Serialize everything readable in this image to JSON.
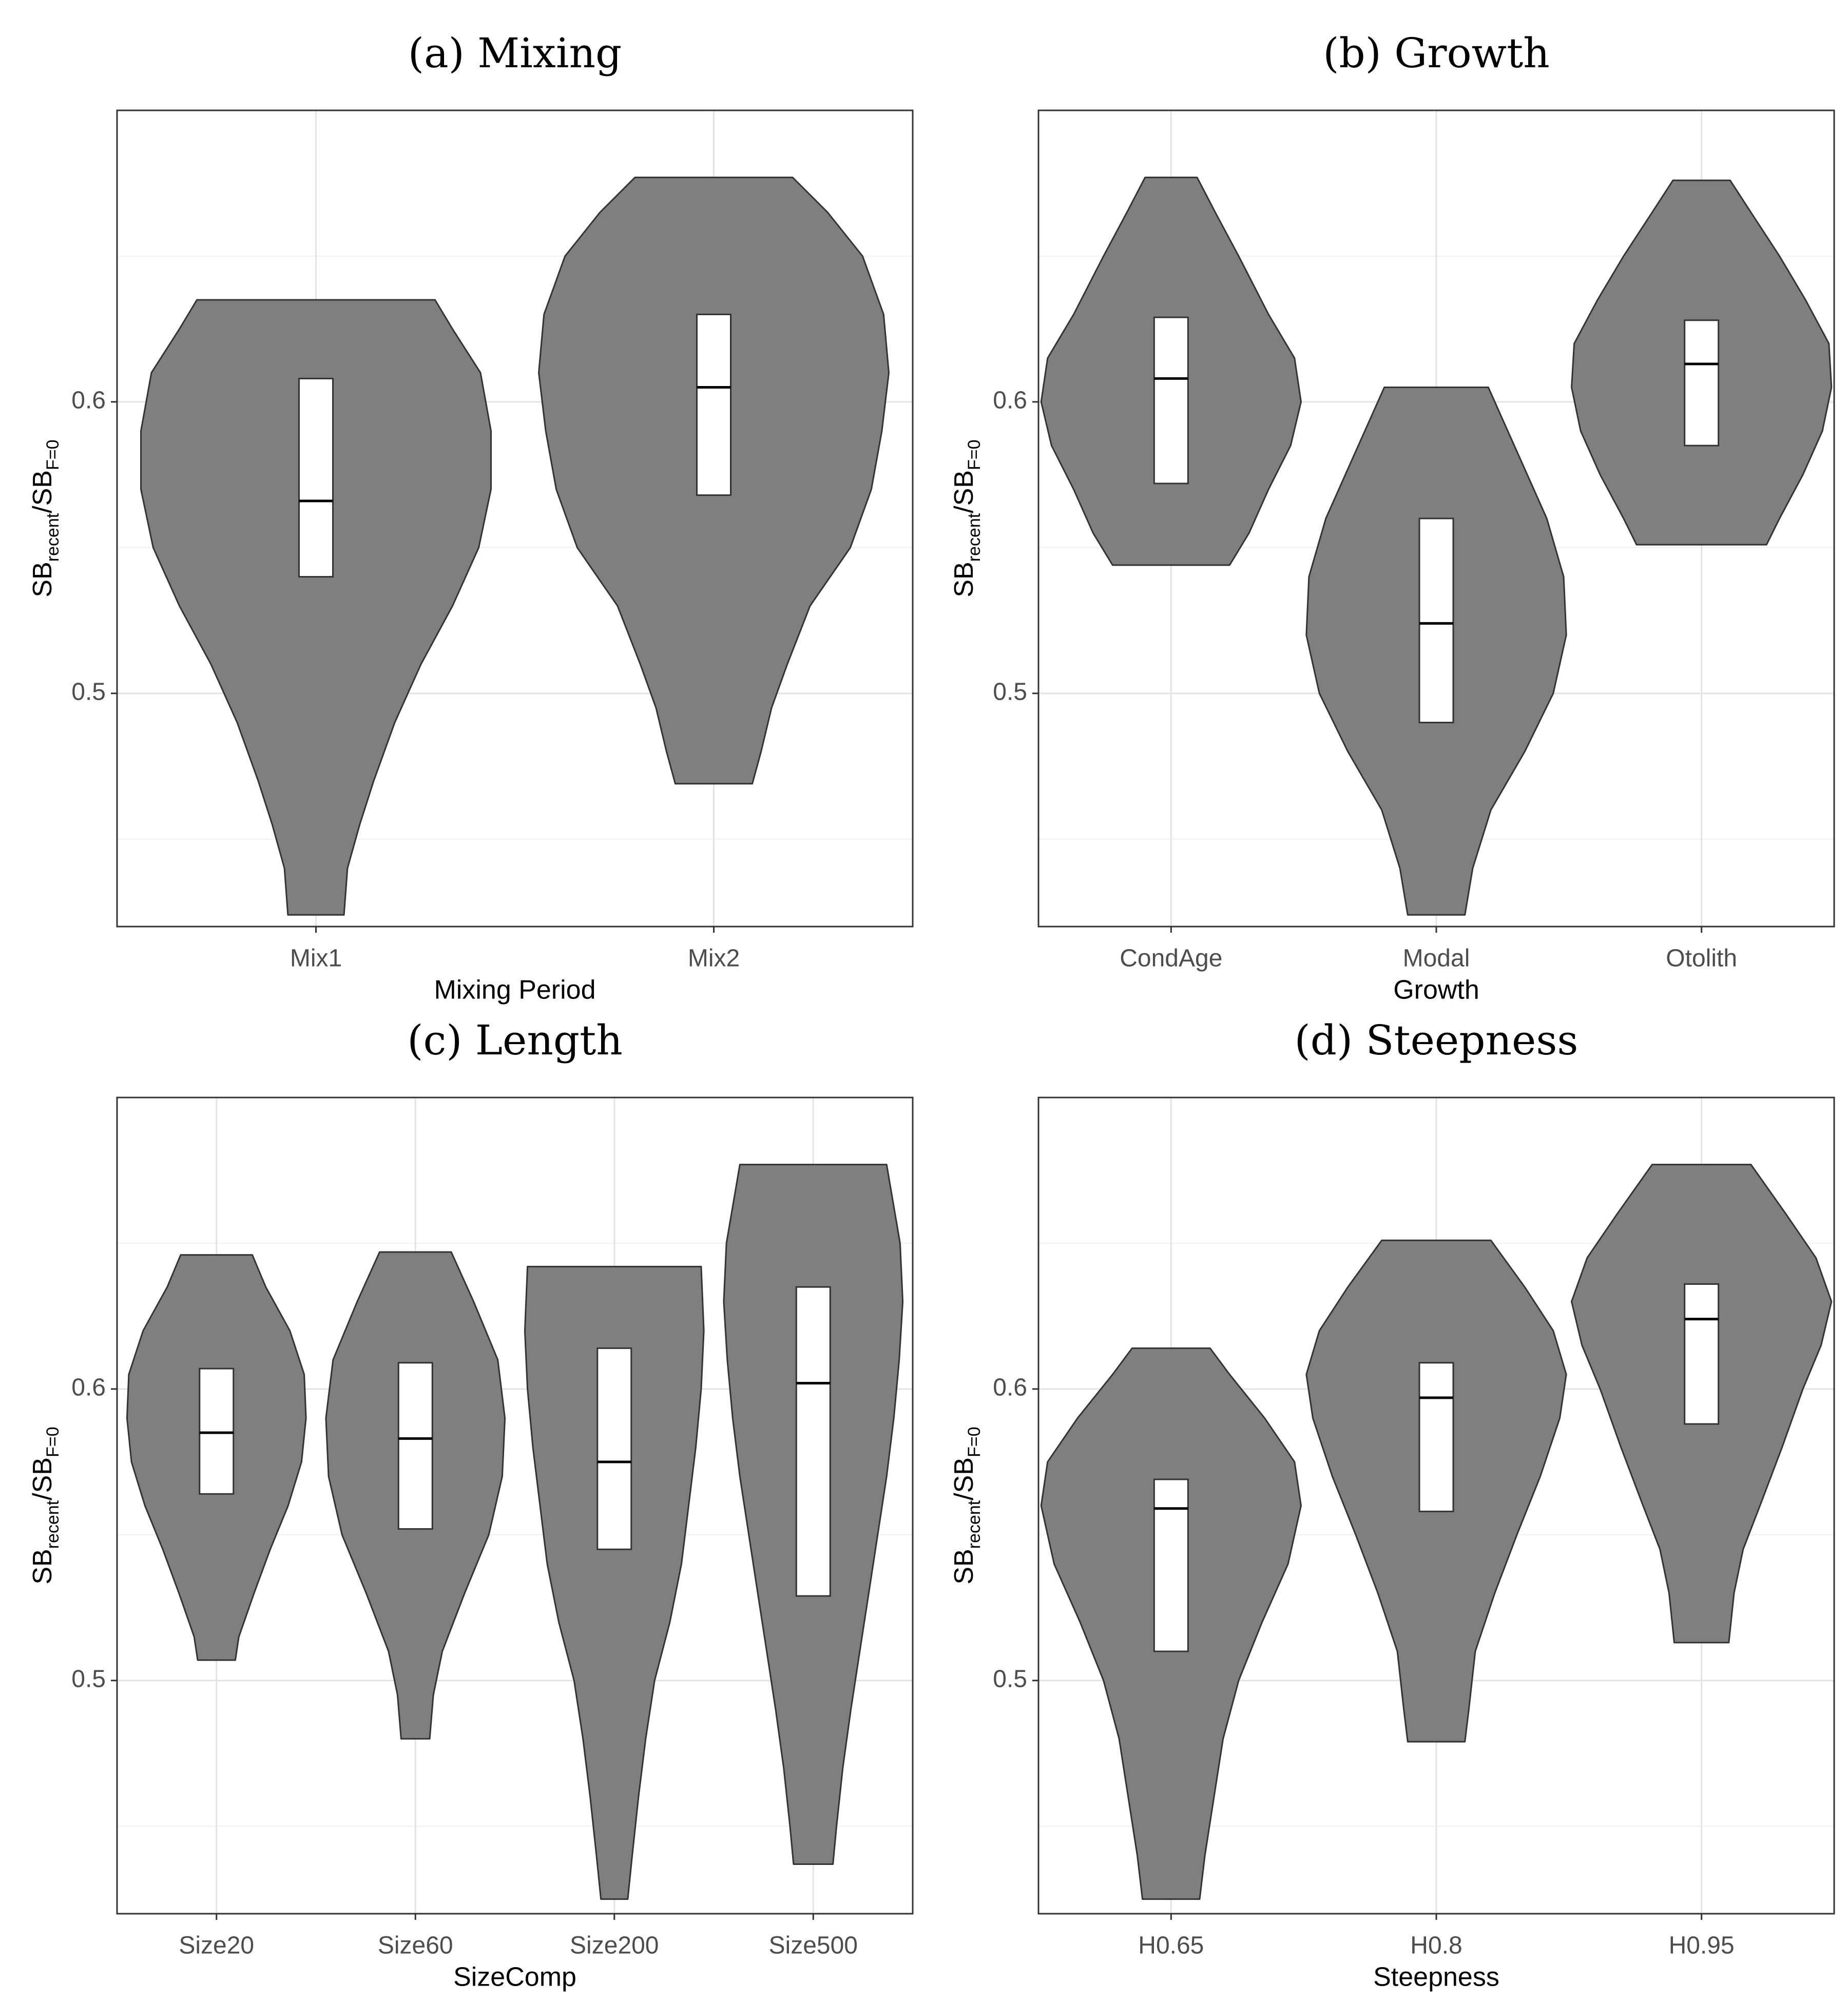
{
  "chart_data": [
    {
      "type": "violin",
      "title": "(a) Mixing",
      "xlabel": "Mixing Period",
      "ylabel": {
        "main_1": "SB",
        "sub_1": "recent",
        "sep": "/",
        "main_2": "SB",
        "sub_2": "F=0"
      },
      "ylim": [
        0.42,
        0.7
      ],
      "yticks": [
        0.5,
        0.6
      ],
      "ytick_labels": [
        "0.5",
        "0.6"
      ],
      "categories": [
        "Mix1",
        "Mix2"
      ],
      "violins": [
        {
          "category": "Mix1",
          "min": 0.424,
          "max": 0.635,
          "profile": [
            [
              0.424,
              0.16
            ],
            [
              0.44,
              0.18
            ],
            [
              0.455,
              0.25
            ],
            [
              0.47,
              0.33
            ],
            [
              0.49,
              0.45
            ],
            [
              0.51,
              0.6
            ],
            [
              0.53,
              0.78
            ],
            [
              0.55,
              0.93
            ],
            [
              0.57,
              1.0
            ],
            [
              0.59,
              1.0
            ],
            [
              0.61,
              0.94
            ],
            [
              0.625,
              0.78
            ],
            [
              0.635,
              0.68
            ]
          ],
          "q1": 0.54,
          "median": 0.566,
          "q3": 0.608
        },
        {
          "category": "Mix2",
          "min": 0.469,
          "max": 0.677,
          "profile": [
            [
              0.469,
              0.22
            ],
            [
              0.48,
              0.27
            ],
            [
              0.495,
              0.33
            ],
            [
              0.51,
              0.42
            ],
            [
              0.53,
              0.55
            ],
            [
              0.55,
              0.78
            ],
            [
              0.57,
              0.9
            ],
            [
              0.59,
              0.96
            ],
            [
              0.61,
              1.0
            ],
            [
              0.63,
              0.97
            ],
            [
              0.65,
              0.85
            ],
            [
              0.665,
              0.65
            ],
            [
              0.677,
              0.45
            ]
          ],
          "q1": 0.568,
          "median": 0.605,
          "q3": 0.63
        }
      ]
    },
    {
      "type": "violin",
      "title": "(b) Growth",
      "xlabel": "Growth",
      "ylabel": {
        "main_1": "SB",
        "sub_1": "recent",
        "sep": "/",
        "main_2": "SB",
        "sub_2": "F=0"
      },
      "ylim": [
        0.42,
        0.7
      ],
      "yticks": [
        0.5,
        0.6
      ],
      "ytick_labels": [
        "0.5",
        "0.6"
      ],
      "categories": [
        "CondAge",
        "Modal",
        "Otolith"
      ],
      "violins": [
        {
          "category": "CondAge",
          "min": 0.544,
          "max": 0.677,
          "profile": [
            [
              0.544,
              0.45
            ],
            [
              0.555,
              0.6
            ],
            [
              0.57,
              0.75
            ],
            [
              0.585,
              0.92
            ],
            [
              0.6,
              1.0
            ],
            [
              0.615,
              0.95
            ],
            [
              0.63,
              0.75
            ],
            [
              0.65,
              0.52
            ],
            [
              0.665,
              0.34
            ],
            [
              0.677,
              0.2
            ]
          ],
          "q1": 0.572,
          "median": 0.608,
          "q3": 0.629
        },
        {
          "category": "Modal",
          "min": 0.424,
          "max": 0.605,
          "profile": [
            [
              0.424,
              0.22
            ],
            [
              0.44,
              0.28
            ],
            [
              0.46,
              0.42
            ],
            [
              0.48,
              0.68
            ],
            [
              0.5,
              0.9
            ],
            [
              0.52,
              1.0
            ],
            [
              0.54,
              0.98
            ],
            [
              0.56,
              0.85
            ],
            [
              0.58,
              0.65
            ],
            [
              0.595,
              0.5
            ],
            [
              0.605,
              0.4
            ]
          ],
          "q1": 0.49,
          "median": 0.524,
          "q3": 0.56
        },
        {
          "category": "Otolith",
          "min": 0.551,
          "max": 0.676,
          "profile": [
            [
              0.551,
              0.5
            ],
            [
              0.56,
              0.6
            ],
            [
              0.575,
              0.78
            ],
            [
              0.59,
              0.93
            ],
            [
              0.605,
              1.0
            ],
            [
              0.62,
              0.98
            ],
            [
              0.635,
              0.8
            ],
            [
              0.65,
              0.6
            ],
            [
              0.665,
              0.38
            ],
            [
              0.676,
              0.22
            ]
          ],
          "q1": 0.585,
          "median": 0.613,
          "q3": 0.628
        }
      ]
    },
    {
      "type": "violin",
      "title": "(c) Length",
      "xlabel": "SizeComp",
      "ylabel": {
        "main_1": "SB",
        "sub_1": "recent",
        "sep": "/",
        "main_2": "SB",
        "sub_2": "F=0"
      },
      "ylim": [
        0.42,
        0.7
      ],
      "yticks": [
        0.5,
        0.6
      ],
      "ytick_labels": [
        "0.5",
        "0.6"
      ],
      "categories": [
        "Size20",
        "Size60",
        "Size200",
        "Size500"
      ],
      "violins": [
        {
          "category": "Size20",
          "min": 0.507,
          "max": 0.646,
          "profile": [
            [
              0.507,
              0.21
            ],
            [
              0.515,
              0.25
            ],
            [
              0.53,
              0.42
            ],
            [
              0.545,
              0.6
            ],
            [
              0.56,
              0.8
            ],
            [
              0.575,
              0.95
            ],
            [
              0.59,
              1.0
            ],
            [
              0.605,
              0.98
            ],
            [
              0.62,
              0.82
            ],
            [
              0.635,
              0.55
            ],
            [
              0.646,
              0.4
            ]
          ],
          "q1": 0.564,
          "median": 0.585,
          "q3": 0.607
        },
        {
          "category": "Size60",
          "min": 0.48,
          "max": 0.647,
          "profile": [
            [
              0.48,
              0.16
            ],
            [
              0.495,
              0.2
            ],
            [
              0.51,
              0.3
            ],
            [
              0.53,
              0.55
            ],
            [
              0.55,
              0.82
            ],
            [
              0.57,
              0.97
            ],
            [
              0.59,
              1.0
            ],
            [
              0.61,
              0.92
            ],
            [
              0.63,
              0.65
            ],
            [
              0.647,
              0.4
            ]
          ],
          "q1": 0.552,
          "median": 0.583,
          "q3": 0.609
        },
        {
          "category": "Size200",
          "min": 0.425,
          "max": 0.642,
          "profile": [
            [
              0.425,
              0.15
            ],
            [
              0.44,
              0.2
            ],
            [
              0.46,
              0.27
            ],
            [
              0.48,
              0.35
            ],
            [
              0.5,
              0.45
            ],
            [
              0.52,
              0.62
            ],
            [
              0.54,
              0.75
            ],
            [
              0.56,
              0.83
            ],
            [
              0.58,
              0.91
            ],
            [
              0.6,
              0.97
            ],
            [
              0.62,
              1.0
            ],
            [
              0.642,
              0.97
            ]
          ],
          "q1": 0.545,
          "median": 0.575,
          "q3": 0.614
        },
        {
          "category": "Size500",
          "min": 0.437,
          "max": 0.677,
          "profile": [
            [
              0.437,
              0.22
            ],
            [
              0.45,
              0.26
            ],
            [
              0.47,
              0.33
            ],
            [
              0.49,
              0.42
            ],
            [
              0.51,
              0.52
            ],
            [
              0.53,
              0.62
            ],
            [
              0.55,
              0.72
            ],
            [
              0.57,
              0.82
            ],
            [
              0.59,
              0.9
            ],
            [
              0.61,
              0.96
            ],
            [
              0.63,
              1.0
            ],
            [
              0.65,
              0.97
            ],
            [
              0.677,
              0.82
            ]
          ],
          "q1": 0.529,
          "median": 0.602,
          "q3": 0.635
        }
      ]
    },
    {
      "type": "violin",
      "title": "(d) Steepness",
      "xlabel": "Steepness",
      "ylabel": {
        "main_1": "SB",
        "sub_1": "recent",
        "sep": "/",
        "main_2": "SB",
        "sub_2": "F=0"
      },
      "ylim": [
        0.42,
        0.7
      ],
      "yticks": [
        0.5,
        0.6
      ],
      "ytick_labels": [
        "0.5",
        "0.6"
      ],
      "categories": [
        "H0.65",
        "H0.8",
        "H0.95"
      ],
      "violins": [
        {
          "category": "H0.65",
          "min": 0.425,
          "max": 0.614,
          "profile": [
            [
              0.425,
              0.22
            ],
            [
              0.44,
              0.26
            ],
            [
              0.46,
              0.33
            ],
            [
              0.48,
              0.4
            ],
            [
              0.5,
              0.52
            ],
            [
              0.52,
              0.7
            ],
            [
              0.54,
              0.9
            ],
            [
              0.56,
              1.0
            ],
            [
              0.575,
              0.95
            ],
            [
              0.59,
              0.72
            ],
            [
              0.605,
              0.45
            ],
            [
              0.614,
              0.3
            ]
          ],
          "q1": 0.51,
          "median": 0.559,
          "q3": 0.569
        },
        {
          "category": "H0.8",
          "min": 0.479,
          "max": 0.651,
          "profile": [
            [
              0.479,
              0.22
            ],
            [
              0.49,
              0.25
            ],
            [
              0.51,
              0.3
            ],
            [
              0.53,
              0.45
            ],
            [
              0.55,
              0.62
            ],
            [
              0.57,
              0.8
            ],
            [
              0.59,
              0.95
            ],
            [
              0.605,
              1.0
            ],
            [
              0.62,
              0.9
            ],
            [
              0.635,
              0.68
            ],
            [
              0.651,
              0.42
            ]
          ],
          "q1": 0.558,
          "median": 0.597,
          "q3": 0.609
        },
        {
          "category": "H0.95",
          "min": 0.513,
          "max": 0.677,
          "profile": [
            [
              0.513,
              0.21
            ],
            [
              0.53,
              0.25
            ],
            [
              0.545,
              0.32
            ],
            [
              0.56,
              0.45
            ],
            [
              0.58,
              0.62
            ],
            [
              0.6,
              0.78
            ],
            [
              0.615,
              0.92
            ],
            [
              0.63,
              1.0
            ],
            [
              0.645,
              0.88
            ],
            [
              0.66,
              0.65
            ],
            [
              0.677,
              0.38
            ]
          ],
          "q1": 0.588,
          "median": 0.624,
          "q3": 0.636
        }
      ]
    }
  ]
}
